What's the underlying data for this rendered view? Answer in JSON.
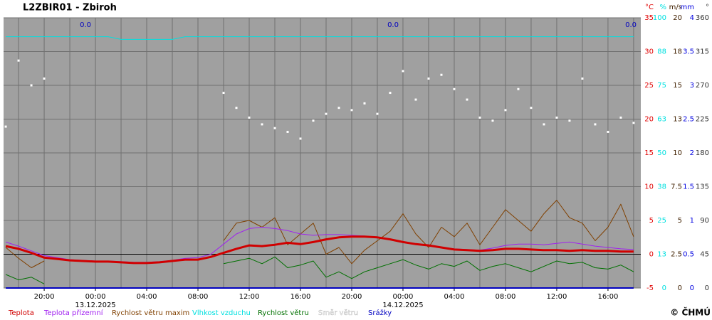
{
  "chart_data": {
    "type": "line",
    "title": "L2ZBIR01 - Zbiroh",
    "copyright": "© ČHMÚ",
    "x": [
      17,
      18,
      19,
      20,
      21,
      22,
      23,
      24,
      25,
      26,
      27,
      28,
      29,
      30,
      31,
      32,
      33,
      34,
      35,
      36,
      37,
      38,
      39,
      40,
      41,
      42,
      43,
      44,
      45,
      46,
      47,
      48,
      49,
      50,
      51,
      52,
      53,
      54,
      55,
      56,
      57,
      58,
      59,
      60,
      61,
      62,
      63,
      64,
      65,
      66
    ],
    "xlim": [
      16.83,
      66.56
    ],
    "xticks": [
      {
        "value": 20,
        "label": "20:00"
      },
      {
        "value": 24,
        "label": "00:00"
      },
      {
        "value": 28,
        "label": "04:00"
      },
      {
        "value": 32,
        "label": "08:00"
      },
      {
        "value": 36,
        "label": "12:00"
      },
      {
        "value": 40,
        "label": "16:00"
      },
      {
        "value": 44,
        "label": "20:00"
      },
      {
        "value": 48,
        "label": "00:00"
      },
      {
        "value": 52,
        "label": "04:00"
      },
      {
        "value": 56,
        "label": "08:00"
      },
      {
        "value": 60,
        "label": "12:00"
      },
      {
        "value": 64,
        "label": "16:00"
      }
    ],
    "xminorticks": [
      18,
      22,
      26,
      30,
      34,
      38,
      42,
      46,
      50,
      54,
      58,
      62,
      66
    ],
    "dates": [
      {
        "value": 24,
        "label": "13.12.2025"
      },
      {
        "value": 48,
        "label": "14.12.2025"
      }
    ],
    "precip_totals": [
      {
        "day_end": 24,
        "value": 0,
        "label": "0.0"
      },
      {
        "day_end": 48,
        "value": 0,
        "label": "0.0"
      },
      {
        "day_end": 72,
        "value": 0,
        "label": "0.0"
      }
    ],
    "grid": true,
    "zero_line": 0,
    "axes": [
      {
        "name": "°C",
        "color": "#e00000",
        "lim": [
          -5,
          35
        ],
        "ticks": [
          -5,
          0,
          5,
          10,
          15,
          20,
          25,
          30,
          35
        ]
      },
      {
        "name": "%",
        "color": "#00e0e0",
        "lim": [
          0,
          100
        ],
        "ticks": [
          0,
          {
            "value": 12.5,
            "label": "13"
          },
          25,
          {
            "value": 37.5,
            "label": "38"
          },
          50,
          {
            "value": 62.5,
            "label": "63"
          },
          75,
          {
            "value": 87.5,
            "label": "88"
          },
          100
        ]
      },
      {
        "name": "m/s",
        "color": "#402000",
        "lim": [
          0,
          20
        ],
        "ticks": [
          0,
          2.5,
          5,
          7.5,
          10,
          {
            "value": 12.5,
            "label": "13"
          },
          15,
          {
            "value": 17.5,
            "label": "18"
          },
          20
        ]
      },
      {
        "name": "mm",
        "color": "#0000e0",
        "lim": [
          0,
          4
        ],
        "ticks": [
          0,
          0.5,
          1,
          1.5,
          2,
          2.5,
          3,
          3.5,
          4
        ]
      },
      {
        "name": "°",
        "color": "#333333",
        "lim": [
          0,
          360
        ],
        "ticks": [
          0,
          45,
          90,
          135,
          180,
          225,
          270,
          315,
          360
        ]
      }
    ],
    "series": [
      {
        "name": "Teplota",
        "color": "#d00000",
        "axis": 0,
        "width": 3,
        "values": [
          1.2,
          0.8,
          0.2,
          -0.5,
          -0.7,
          -0.9,
          -1.0,
          -1.1,
          -1.1,
          -1.2,
          -1.3,
          -1.3,
          -1.2,
          -1.0,
          -0.8,
          -0.8,
          -0.4,
          0.2,
          0.8,
          1.3,
          1.2,
          1.4,
          1.7,
          1.5,
          1.8,
          2.2,
          2.5,
          2.6,
          2.6,
          2.5,
          2.2,
          1.8,
          1.5,
          1.3,
          1.0,
          0.7,
          0.6,
          0.5,
          0.6,
          0.8,
          0.8,
          0.7,
          0.6,
          0.6,
          0.5,
          0.6,
          0.5,
          0.5,
          0.4,
          0.4
        ]
      },
      {
        "name": "Teplota přízemní",
        "color": "#a020f0",
        "axis": 0,
        "width": 1,
        "values": [
          1.8,
          1.2,
          0.5,
          -0.2,
          -0.5,
          -0.8,
          -0.9,
          -1.0,
          -1.0,
          -1.1,
          -1.2,
          -1.2,
          -1.1,
          -0.9,
          -0.6,
          -0.5,
          0.0,
          1.5,
          3.0,
          3.8,
          4.0,
          3.8,
          3.5,
          3.0,
          2.8,
          2.9,
          2.9,
          2.8,
          2.7,
          2.5,
          2.2,
          1.8,
          1.5,
          1.3,
          1.0,
          0.8,
          0.7,
          0.6,
          0.9,
          1.3,
          1.5,
          1.5,
          1.4,
          1.6,
          1.8,
          1.5,
          1.2,
          1.0,
          0.8,
          0.7
        ]
      },
      {
        "name": "Rychlost větru maxim",
        "color": "#804000",
        "axis": 2,
        "width": 1,
        "values": [
          3.0,
          2.2,
          1.5,
          2.0,
          null,
          null,
          null,
          null,
          null,
          null,
          null,
          null,
          null,
          null,
          null,
          null,
          null,
          3.5,
          4.8,
          5.0,
          4.5,
          5.2,
          3.2,
          4.0,
          4.8,
          2.5,
          3.0,
          1.8,
          2.8,
          3.5,
          4.2,
          5.5,
          4.0,
          3.0,
          4.5,
          3.8,
          4.8,
          3.2,
          4.5,
          5.8,
          5.0,
          4.2,
          5.5,
          6.5,
          5.2,
          4.8,
          3.5,
          4.5,
          6.2,
          3.8
        ]
      },
      {
        "name": "Vlhkost vzduchu",
        "color": "#00e0e0",
        "axis": 1,
        "width": 1,
        "values": [
          93,
          93,
          93,
          93,
          93,
          93,
          93,
          93,
          93,
          92,
          92,
          92,
          92,
          92,
          93,
          93,
          93,
          93,
          93,
          93,
          93,
          93,
          93,
          93,
          93,
          93,
          93,
          93,
          93,
          93,
          93,
          93,
          93,
          93,
          93,
          93,
          93,
          93,
          93,
          93,
          93,
          93,
          93,
          93,
          93,
          93,
          93,
          93,
          93,
          93
        ]
      },
      {
        "name": "Rychlost větru",
        "color": "#007000",
        "axis": 2,
        "width": 1,
        "values": [
          1.0,
          0.6,
          0.8,
          0.3,
          null,
          null,
          null,
          null,
          null,
          null,
          null,
          null,
          null,
          null,
          null,
          null,
          null,
          1.8,
          2.0,
          2.2,
          1.8,
          2.3,
          1.5,
          1.7,
          2.0,
          0.8,
          1.2,
          0.7,
          1.2,
          1.5,
          1.8,
          2.1,
          1.7,
          1.4,
          1.8,
          1.6,
          2.0,
          1.3,
          1.6,
          1.8,
          1.5,
          1.2,
          1.6,
          2.0,
          1.8,
          1.9,
          1.5,
          1.4,
          1.7,
          1.2
        ]
      },
      {
        "name": "Směr větru",
        "color": "#ffffff",
        "axis": 4,
        "style": "dots",
        "values": [
          215,
          303,
          270,
          279,
          null,
          null,
          null,
          null,
          null,
          null,
          null,
          null,
          null,
          null,
          null,
          null,
          null,
          260,
          240,
          227,
          218,
          213,
          208,
          199,
          223,
          232,
          240,
          237,
          246,
          232,
          260,
          289,
          251,
          279,
          284,
          265,
          251,
          227,
          223,
          237,
          265,
          240,
          218,
          227,
          223,
          279,
          218,
          208,
          227,
          220
        ]
      },
      {
        "name": "Srážky",
        "color": "#0000c0",
        "axis": 3,
        "width": 2,
        "values": [
          0,
          0,
          0,
          0,
          0,
          0,
          0,
          0,
          0,
          0,
          0,
          0,
          0,
          0,
          0,
          0,
          0,
          0,
          0,
          0,
          0,
          0,
          0,
          0,
          0,
          0,
          0,
          0,
          0,
          0,
          0,
          0,
          0,
          0,
          0,
          0,
          0,
          0,
          0,
          0,
          0,
          0,
          0,
          0,
          0,
          0,
          0,
          0,
          0,
          0
        ]
      }
    ]
  }
}
